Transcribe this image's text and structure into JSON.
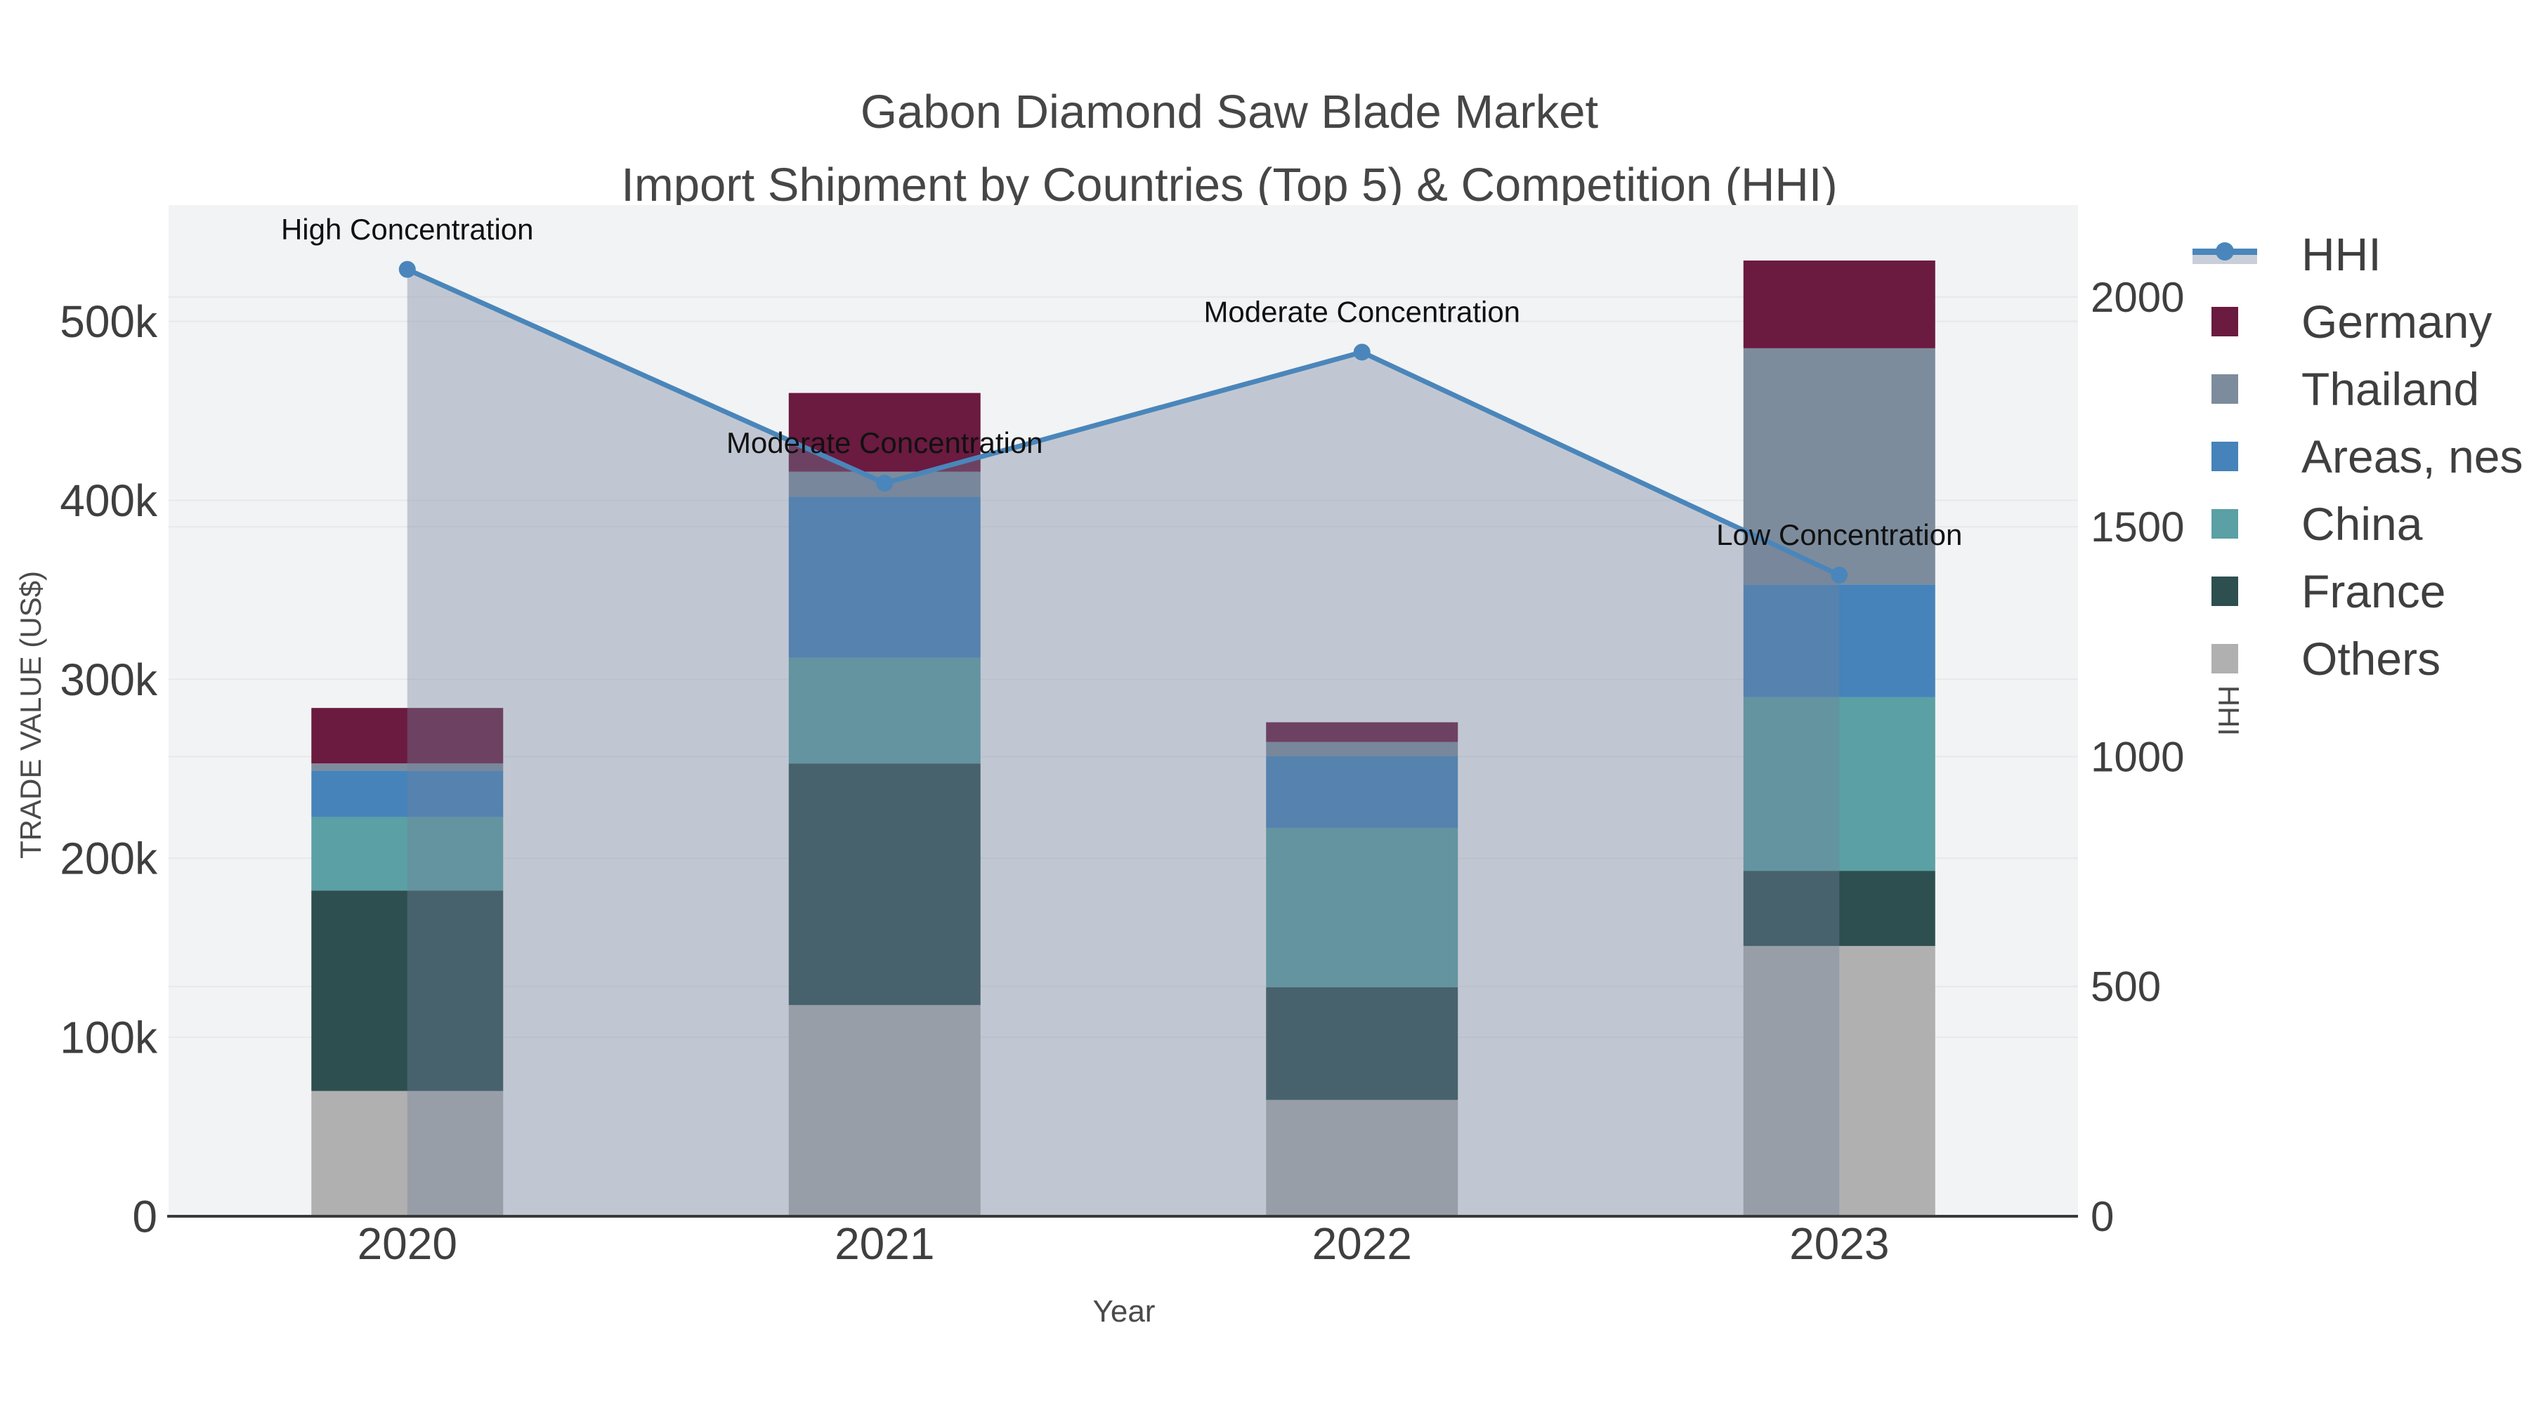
{
  "title": {
    "line1": "Gabon Diamond Saw Blade Market",
    "line2": "Import Shipment by Countries (Top 5) & Competition (HHI)"
  },
  "chart_data": {
    "type": "combo",
    "title": "Gabon Diamond Saw Blade Market",
    "subtitle": "Import Shipment by Countries (Top 5) & Competition (HHI)",
    "categories": [
      "2020",
      "2021",
      "2022",
      "2023"
    ],
    "bar_series_bottom_to_top": [
      {
        "name": "Others",
        "color": "#b0b0b0",
        "values": [
          70000,
          118000,
          65000,
          151000
        ]
      },
      {
        "name": "France",
        "color": "#2e4f4f",
        "values": [
          112000,
          135000,
          63000,
          42000
        ]
      },
      {
        "name": "China",
        "color": "#5ba0a4",
        "values": [
          41000,
          59000,
          89000,
          97000
        ]
      },
      {
        "name": "Areas, nes",
        "color": "#4583ba",
        "values": [
          26000,
          90000,
          40000,
          63000
        ]
      },
      {
        "name": "Thailand",
        "color": "#7d8c9c",
        "values": [
          4000,
          14000,
          8000,
          132000
        ]
      },
      {
        "name": "Germany",
        "color": "#6b1a40",
        "values": [
          31000,
          44000,
          11000,
          49000
        ]
      }
    ],
    "bar_totals": [
      284000,
      460000,
      276000,
      534000
    ],
    "line_series": {
      "name": "HHI",
      "color": "#4a86bb",
      "area_fill": "rgba(114,130,155,0.38)",
      "values": [
        2060,
        1595,
        1880,
        1395
      ],
      "annotations": [
        "High Concentration",
        "Moderate Concentration",
        "Moderate Concentration",
        "Low Concentration"
      ]
    },
    "legend_order": [
      "HHI",
      "Germany",
      "Thailand",
      "Areas, nes",
      "China",
      "France",
      "Others"
    ],
    "xlabel": "Year",
    "ylabel_left": "TRADE VALUE (US$)",
    "ylabel_right": "HHI",
    "y_left": {
      "ticks": [
        0,
        100000,
        200000,
        300000,
        400000,
        500000
      ],
      "tick_labels": [
        "0",
        "100k",
        "200k",
        "300k",
        "400k",
        "500k"
      ],
      "max": 565000
    },
    "y_right": {
      "ticks": [
        0,
        500,
        1000,
        1500,
        2000
      ],
      "tick_labels": [
        "0",
        "500",
        "1000",
        "1500",
        "2000"
      ],
      "max": 2200
    },
    "grid": true,
    "legend_position": "right"
  },
  "style": {
    "plot_bg": "#f2f3f4",
    "grid_color": "#e7e8ea",
    "axis_line_color": "#3a3a3a",
    "tick_color": "#3f3f3f",
    "annotation_color": "#111111",
    "title_color": "#464646"
  }
}
